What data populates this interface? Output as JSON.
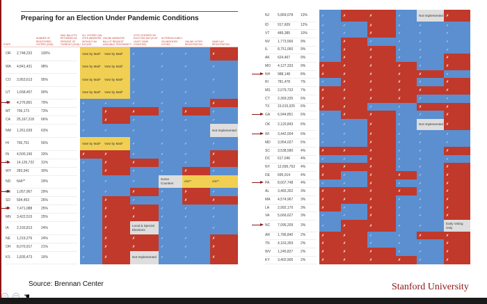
{
  "title": "Preparing for an Election Under Pandemic Conditions",
  "headers": [
    "State",
    "Number of registered voters (2018)",
    "Mail ballots returned as percent of turnout (2018) *",
    "All voters can vote absentee without an excuse",
    "Online absentee ballot request available statewide***",
    "Vote centers on election day (in at least some counties)",
    "In-person early or absentee voting",
    "Online voter registration",
    "Same day registration"
  ],
  "symbols": {
    "yes": "✓",
    "no": "✗"
  },
  "colors": {
    "yes": "#5b8fd0",
    "no": "#c0392b",
    "mail": "#f1cf52",
    "note": "#dedede",
    "brand": "#8c1515"
  },
  "left_rows": [
    {
      "state": "OR",
      "voters": "2,748,232",
      "pct": "100%",
      "arrow": false,
      "cells": [
        "Vote by Mail*",
        "Vote by Mail*",
        "yes",
        "yes",
        "yes",
        "no"
      ]
    },
    {
      "state": "WA",
      "voters": "4,841,431",
      "pct": "98%",
      "arrow": false,
      "cells": [
        "Vote by Mail*",
        "Vote by Mail*",
        "yes",
        "yes",
        "yes",
        "yes"
      ]
    },
    {
      "state": "CO",
      "voters": "3,953,613",
      "pct": "95%",
      "arrow": false,
      "cells": [
        "Vote by Mail*",
        "Vote by Mail*",
        "yes",
        "yes",
        "yes",
        "yes"
      ]
    },
    {
      "state": "UT",
      "voters": "1,658,457",
      "pct": "90%",
      "arrow": false,
      "cells": [
        "Vote by Mail*",
        "Vote by Mail*",
        "yes",
        "yes",
        "yes",
        "yes"
      ]
    },
    {
      "state": "AZ",
      "voters": "4,276,891",
      "pct": "79%",
      "arrow": true,
      "cells": [
        "yes",
        "yes",
        "yes",
        "yes",
        "yes",
        "no"
      ]
    },
    {
      "state": "MT",
      "voters": "706,173",
      "pct": "73%",
      "arrow": false,
      "cells": [
        "yes",
        "no",
        "no",
        "yes",
        "no",
        "yes"
      ]
    },
    {
      "state": "CA",
      "voters": "25,167,218",
      "pct": "66%",
      "arrow": false,
      "cells": [
        "yes",
        "no",
        "yes",
        "yes",
        "yes",
        "yes"
      ]
    },
    {
      "state": "NM",
      "voters": "1,261,639",
      "pct": "63%",
      "arrow": false,
      "cells": [
        "yes",
        "yes",
        "yes",
        "yes",
        "yes",
        "Not Implemented"
      ]
    },
    {
      "state": "HI",
      "voters": "756,751",
      "pct": "56%",
      "arrow": false,
      "cells": [
        "Vote by Mail*",
        "Vote by Mail*",
        "yes",
        "yes",
        "yes",
        "yes"
      ]
    },
    {
      "state": "IN",
      "voters": "4,500,196",
      "pct": "33%",
      "arrow": false,
      "cells": [
        "no",
        "no",
        "yes",
        "yes",
        "yes",
        "no"
      ]
    },
    {
      "state": "FL",
      "voters": "14,126,722",
      "pct": "31%",
      "arrow": true,
      "cells": [
        "yes",
        "no",
        "no",
        "yes",
        "yes",
        "no"
      ]
    },
    {
      "state": "WY",
      "voters": "283,941",
      "pct": "30%",
      "arrow": false,
      "cells": [
        "yes",
        "no",
        "yes",
        "yes",
        "no",
        "yes"
      ]
    },
    {
      "state": "ND",
      "voters": "N/A**",
      "pct": "29%",
      "arrow": false,
      "cells": [
        "yes",
        "yes",
        "yes",
        "Some Counties",
        "n/a**",
        "n/a**"
      ]
    },
    {
      "state": "ME",
      "voters": "1,057,967",
      "pct": "29%",
      "arrow": true,
      "cells": [
        "yes",
        "yes",
        "no",
        "yes",
        "no",
        "yes"
      ]
    },
    {
      "state": "SD",
      "voters": "594,453",
      "pct": "26%",
      "arrow": false,
      "cells": [
        "yes",
        "no",
        "yes",
        "yes",
        "no",
        "no"
      ]
    },
    {
      "state": "MI",
      "voters": "7,471,088",
      "pct": "25%",
      "arrow": true,
      "cells": [
        "yes",
        "no",
        "no",
        "yes",
        "yes",
        "yes"
      ]
    },
    {
      "state": "MN",
      "voters": "3,422,515",
      "pct": "25%",
      "arrow": false,
      "cells": [
        "yes",
        "no",
        "no",
        "yes",
        "yes",
        "yes"
      ]
    },
    {
      "state": "IA",
      "voters": "2,193,813",
      "pct": "24%",
      "arrow": false,
      "cells": [
        "yes",
        "no",
        "Local & Special Elections",
        "yes",
        "yes",
        "yes"
      ]
    },
    {
      "state": "NE",
      "voters": "1,219,276",
      "pct": "24%",
      "arrow": false,
      "cells": [
        "yes",
        "no",
        "no",
        "yes",
        "yes",
        "no"
      ]
    },
    {
      "state": "OH",
      "voters": "8,070,917",
      "pct": "21%",
      "arrow": false,
      "cells": [
        "yes",
        "no",
        "no",
        "yes",
        "yes",
        "no"
      ]
    },
    {
      "state": "KS",
      "voters": "1,835,473",
      "pct": "16%",
      "arrow": false,
      "cells": [
        "yes",
        "no",
        "Not Implemented",
        "yes",
        "yes",
        "no"
      ]
    }
  ],
  "right_rows": [
    {
      "state": "NJ",
      "voters": "5,869,078",
      "pct": "13%",
      "arrow": false,
      "cells": [
        "yes",
        "no",
        "no",
        "yes",
        "Not Implemented",
        "no"
      ]
    },
    {
      "state": "ID",
      "voters": "917,609",
      "pct": "12%",
      "arrow": false,
      "cells": [
        "yes",
        "yes",
        "no",
        "yes",
        "yes",
        "yes"
      ]
    },
    {
      "state": "VT",
      "voters": "489,385",
      "pct": "10%",
      "arrow": false,
      "cells": [
        "yes",
        "yes",
        "no",
        "yes",
        "yes",
        "yes"
      ]
    },
    {
      "state": "NV",
      "voters": "1,773,566",
      "pct": "9%",
      "arrow": false,
      "cells": [
        "yes",
        "no",
        "yes",
        "yes",
        "yes",
        "yes"
      ]
    },
    {
      "state": "IL",
      "voters": "8,751,060",
      "pct": "9%",
      "arrow": false,
      "cells": [
        "yes",
        "no",
        "no",
        "yes",
        "yes",
        "yes"
      ]
    },
    {
      "state": "AK",
      "voters": "624,467",
      "pct": "9%",
      "arrow": false,
      "cells": [
        "yes",
        "no",
        "no",
        "yes",
        "yes",
        "no"
      ]
    },
    {
      "state": "MO",
      "voters": "4,127,333",
      "pct": "9%",
      "arrow": false,
      "cells": [
        "no",
        "no",
        "no",
        "no",
        "yes",
        "no"
      ]
    },
    {
      "state": "NH",
      "voters": "988,148",
      "pct": "8%",
      "arrow": true,
      "cells": [
        "no",
        "no",
        "no",
        "no",
        "no",
        "yes"
      ]
    },
    {
      "state": "RI",
      "voters": "781,478",
      "pct": "7%",
      "arrow": false,
      "cells": [
        "yes",
        "no",
        "no",
        "no",
        "yes",
        "no"
      ]
    },
    {
      "state": "MS",
      "voters": "2,079,732",
      "pct": "7%",
      "arrow": false,
      "cells": [
        "no",
        "no",
        "no",
        "no",
        "no",
        "no"
      ]
    },
    {
      "state": "CT",
      "voters": "2,369,335",
      "pct": "6%",
      "arrow": false,
      "cells": [
        "no",
        "no",
        "no",
        "no",
        "yes",
        "yes"
      ]
    },
    {
      "state": "TX",
      "voters": "15,615,925",
      "pct": "6%",
      "arrow": false,
      "cells": [
        "no",
        "no",
        "yes",
        "yes",
        "no",
        "no"
      ]
    },
    {
      "state": "GA",
      "voters": "6,944,851",
      "pct": "6%",
      "arrow": true,
      "cells": [
        "yes",
        "no",
        "no",
        "yes",
        "yes",
        "no"
      ]
    },
    {
      "state": "OK",
      "voters": "2,120,843",
      "pct": "6%",
      "arrow": false,
      "cells": [
        "yes",
        "yes",
        "no",
        "yes",
        "Not Implemented",
        "no"
      ]
    },
    {
      "state": "WI",
      "voters": "3,442,004",
      "pct": "6%",
      "arrow": true,
      "cells": [
        "yes",
        "yes",
        "no",
        "yes",
        "yes",
        "yes"
      ]
    },
    {
      "state": "MD",
      "voters": "3,954,027",
      "pct": "5%",
      "arrow": false,
      "cells": [
        "yes",
        "yes",
        "no",
        "yes",
        "yes",
        "yes"
      ]
    },
    {
      "state": "SC",
      "voters": "3,538,580",
      "pct": "4%",
      "arrow": false,
      "cells": [
        "no",
        "no",
        "no",
        "yes",
        "yes",
        "no"
      ]
    },
    {
      "state": "DC",
      "voters": "617,046",
      "pct": "4%",
      "arrow": false,
      "cells": [
        "yes",
        "yes",
        "no",
        "yes",
        "yes",
        "yes"
      ]
    },
    {
      "state": "NY",
      "voters": "12,695,763",
      "pct": "4%",
      "arrow": false,
      "cells": [
        "no",
        "no",
        "no",
        "yes",
        "yes",
        "no"
      ]
    },
    {
      "state": "DE",
      "voters": "695,014",
      "pct": "4%",
      "arrow": false,
      "cells": [
        "no",
        "yes",
        "no",
        "no",
        "yes",
        "no"
      ]
    },
    {
      "state": "PA",
      "voters": "8,607,748",
      "pct": "4%",
      "arrow": true,
      "cells": [
        "yes",
        "yes",
        "no",
        "yes",
        "yes",
        "no"
      ]
    },
    {
      "state": "AL",
      "voters": "3,465,352",
      "pct": "3%",
      "arrow": false,
      "cells": [
        "no",
        "no",
        "no",
        "no",
        "yes",
        "no"
      ]
    },
    {
      "state": "MA",
      "voters": "4,574,967",
      "pct": "3%",
      "arrow": false,
      "cells": [
        "no",
        "no",
        "no",
        "yes",
        "yes",
        "no"
      ]
    },
    {
      "state": "LA",
      "voters": "2,992,170",
      "pct": "3%",
      "arrow": false,
      "cells": [
        "no",
        "yes",
        "no",
        "yes",
        "yes",
        "no"
      ]
    },
    {
      "state": "VA",
      "voters": "5,666,627",
      "pct": "3%",
      "arrow": false,
      "cells": [
        "yes",
        "yes",
        "no",
        "yes",
        "yes",
        "no"
      ]
    },
    {
      "state": "NC",
      "voters": "7,095,209",
      "pct": "3%",
      "arrow": true,
      "cells": [
        "yes",
        "no",
        "no",
        "yes",
        "yes",
        "Early Voting Only"
      ]
    },
    {
      "state": "AR",
      "voters": "1,786,840",
      "pct": "2%",
      "arrow": false,
      "cells": [
        "no",
        "no",
        "yes",
        "yes",
        "no",
        "no"
      ]
    },
    {
      "state": "TN",
      "voters": "4,163,359",
      "pct": "2%",
      "arrow": false,
      "cells": [
        "no",
        "no",
        "yes",
        "yes",
        "yes",
        "no"
      ]
    },
    {
      "state": "WV",
      "voters": "1,245,827",
      "pct": "2%",
      "arrow": false,
      "cells": [
        "no",
        "no",
        "no",
        "yes",
        "yes",
        "no"
      ]
    },
    {
      "state": "KY",
      "voters": "3,402,905",
      "pct": "2%",
      "arrow": false,
      "cells": [
        "no",
        "no",
        "no",
        "no",
        "yes",
        "no"
      ]
    }
  ],
  "footer": {
    "source": "Source: Brennan Center",
    "brand": "Stanford University"
  }
}
